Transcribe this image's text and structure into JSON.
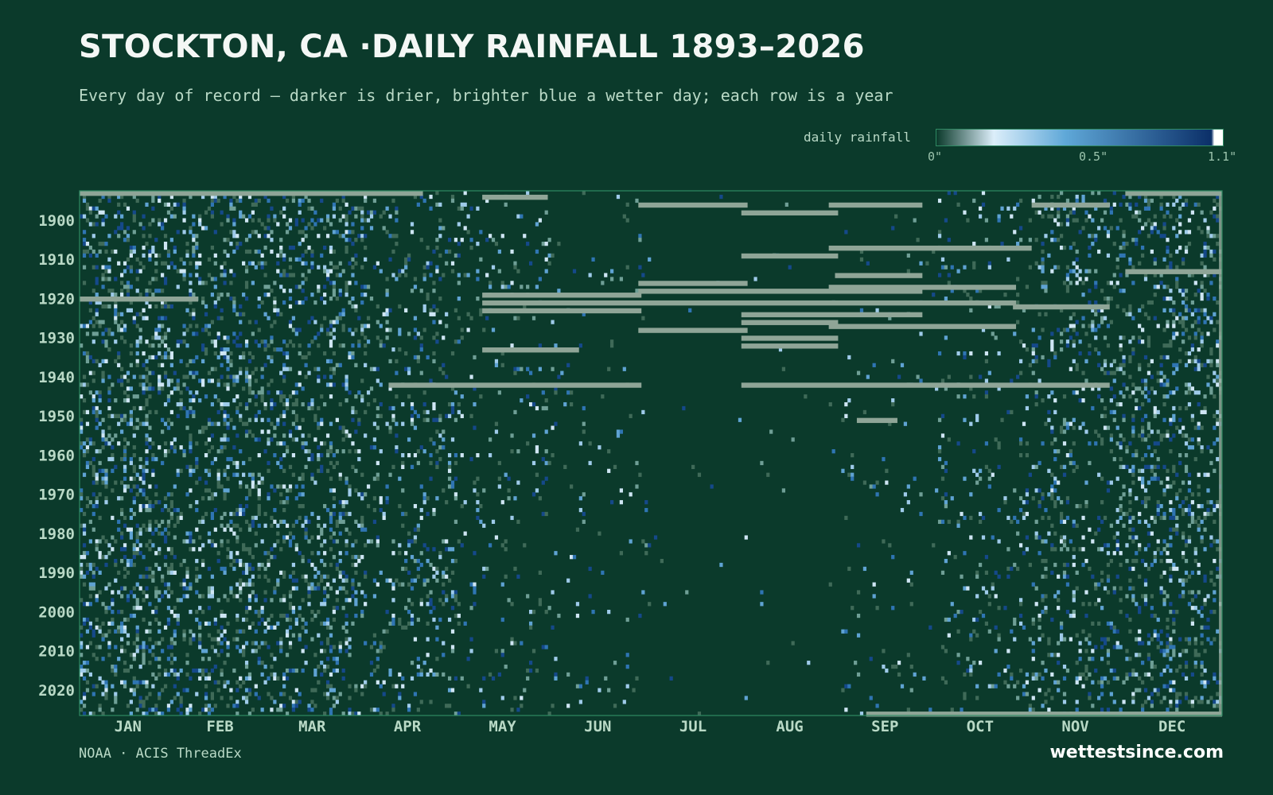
{
  "header": {
    "title": "STOCKTON, CA ·DAILY RAINFALL 1893–2026",
    "subtitle": "Every day of record — darker is drier, brighter blue a wetter day; each row is a year"
  },
  "legend": {
    "label": "daily rainfall",
    "ticks": [
      "0\"",
      "0.5\"",
      "1.1\""
    ],
    "scale_min": 0,
    "scale_max": 1.1,
    "colors": [
      "#0b3a2b",
      "#dceefa",
      "#5fa8d8",
      "#0b2f68",
      "#ffffff"
    ],
    "missing_color": "#8fa597"
  },
  "chart_data": {
    "type": "heatmap",
    "title": "STOCKTON, CA ·DAILY RAINFALL 1893–2026",
    "x_categories": [
      "JAN",
      "FEB",
      "MAR",
      "APR",
      "MAY",
      "JUN",
      "JUL",
      "AUG",
      "SEP",
      "OCT",
      "NOV",
      "DEC"
    ],
    "y_ticks": [
      "1900",
      "1910",
      "1920",
      "1930",
      "1940",
      "1950",
      "1960",
      "1970",
      "1980",
      "1990",
      "2000",
      "2010",
      "2020"
    ],
    "year_range": [
      1893,
      2026
    ],
    "day_range": [
      1,
      366
    ],
    "value_unit": "inches",
    "value_range": [
      0,
      1.1
    ],
    "rainy_fraction_by_month": [
      0.24,
      0.22,
      0.2,
      0.12,
      0.06,
      0.025,
      0.004,
      0.005,
      0.025,
      0.07,
      0.15,
      0.22
    ],
    "missing_data_spans": [
      {
        "year": 1893,
        "start_day": 1,
        "end_day": 110
      },
      {
        "year": 1893,
        "start_day": 336,
        "end_day": 366
      },
      {
        "year": 1894,
        "start_day": 130,
        "end_day": 150
      },
      {
        "year": 1896,
        "start_day": 180,
        "end_day": 214
      },
      {
        "year": 1896,
        "start_day": 241,
        "end_day": 270
      },
      {
        "year": 1896,
        "start_day": 306,
        "end_day": 330
      },
      {
        "year": 1898,
        "start_day": 213,
        "end_day": 243
      },
      {
        "year": 1907,
        "start_day": 241,
        "end_day": 305
      },
      {
        "year": 1909,
        "start_day": 213,
        "end_day": 243
      },
      {
        "year": 1913,
        "start_day": 336,
        "end_day": 366
      },
      {
        "year": 1914,
        "start_day": 243,
        "end_day": 270
      },
      {
        "year": 1916,
        "start_day": 180,
        "end_day": 214
      },
      {
        "year": 1917,
        "start_day": 241,
        "end_day": 300
      },
      {
        "year": 1918,
        "start_day": 180,
        "end_day": 270
      },
      {
        "year": 1919,
        "start_day": 130,
        "end_day": 180
      },
      {
        "year": 1920,
        "start_day": 1,
        "end_day": 38
      },
      {
        "year": 1921,
        "start_day": 130,
        "end_day": 300
      },
      {
        "year": 1922,
        "start_day": 300,
        "end_day": 330
      },
      {
        "year": 1923,
        "start_day": 130,
        "end_day": 180
      },
      {
        "year": 1924,
        "start_day": 213,
        "end_day": 270
      },
      {
        "year": 1926,
        "start_day": 213,
        "end_day": 243
      },
      {
        "year": 1927,
        "start_day": 241,
        "end_day": 300
      },
      {
        "year": 1928,
        "start_day": 180,
        "end_day": 214
      },
      {
        "year": 1930,
        "start_day": 213,
        "end_day": 243
      },
      {
        "year": 1932,
        "start_day": 213,
        "end_day": 243
      },
      {
        "year": 1933,
        "start_day": 130,
        "end_day": 160
      },
      {
        "year": 1942,
        "start_day": 100,
        "end_day": 180
      },
      {
        "year": 1942,
        "start_day": 213,
        "end_day": 330
      },
      {
        "year": 1951,
        "start_day": 250,
        "end_day": 262
      },
      {
        "year": 2026,
        "start_day": 253,
        "end_day": 366
      }
    ]
  },
  "footer": {
    "source": "NOAA · ACIS ThreadEx",
    "brand": "wettestsince.com"
  }
}
